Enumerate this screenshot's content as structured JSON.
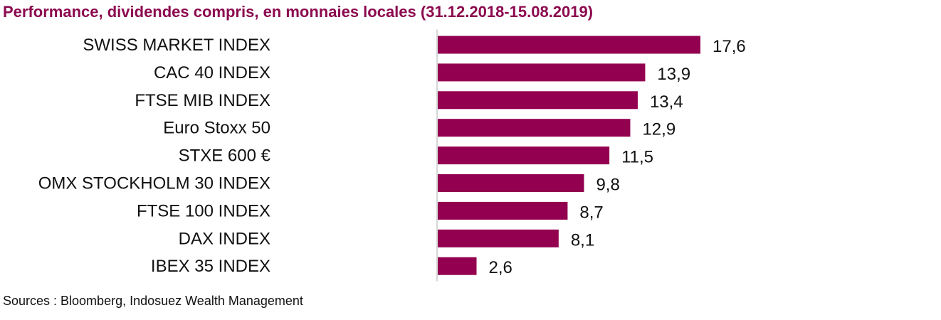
{
  "colors": {
    "title": "#8c0a4f",
    "bar": "#93004f",
    "axis": "#c8c8c8"
  },
  "chart_data": {
    "type": "bar",
    "orientation": "horizontal",
    "title": "Performance, dividendes compris, en monnaies locales (31.12.2018-15.08.2019)",
    "categories": [
      "SWISS MARKET INDEX",
      "CAC 40 INDEX",
      "FTSE MIB INDEX",
      "Euro Stoxx 50",
      "STXE 600 €",
      "OMX STOCKHOLM 30 INDEX",
      "FTSE 100 INDEX",
      "DAX INDEX",
      "IBEX 35 INDEX"
    ],
    "values": [
      17.6,
      13.9,
      13.4,
      12.9,
      11.5,
      9.8,
      8.7,
      8.1,
      2.6
    ],
    "value_labels": [
      "17,6",
      "13,9",
      "13,4",
      "12,9",
      "11,5",
      "9,8",
      "8,7",
      "8,1",
      "2,6"
    ],
    "xlim": [
      0,
      17.6
    ],
    "grid": false,
    "legend": "none"
  },
  "source": "Sources : Bloomberg, Indosuez Wealth Management"
}
